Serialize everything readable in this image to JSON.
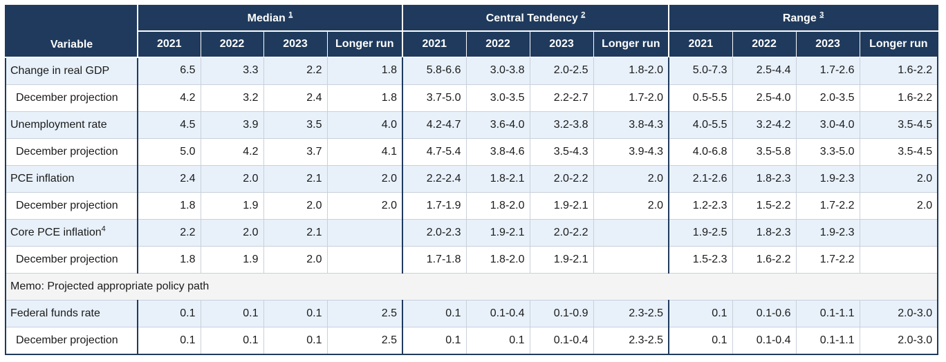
{
  "header": {
    "variable_label": "Variable",
    "groups": [
      {
        "label": "Median",
        "footnote": "1"
      },
      {
        "label": "Central Tendency",
        "footnote": "2"
      },
      {
        "label": "Range",
        "footnote": "3"
      }
    ],
    "columns": [
      "2021",
      "2022",
      "2023",
      "Longer run"
    ]
  },
  "rows": [
    {
      "label": "Change in real GDP",
      "values": [
        "6.5",
        "3.3",
        "2.2",
        "1.8",
        "5.8-6.6",
        "3.0-3.8",
        "2.0-2.5",
        "1.8-2.0",
        "5.0-7.3",
        "2.5-4.4",
        "1.7-2.6",
        "1.6-2.2"
      ]
    },
    {
      "label": "December projection",
      "values": [
        "4.2",
        "3.2",
        "2.4",
        "1.8",
        "3.7-5.0",
        "3.0-3.5",
        "2.2-2.7",
        "1.7-2.0",
        "0.5-5.5",
        "2.5-4.0",
        "2.0-3.5",
        "1.6-2.2"
      ]
    },
    {
      "label": "Unemployment rate",
      "values": [
        "4.5",
        "3.9",
        "3.5",
        "4.0",
        "4.2-4.7",
        "3.6-4.0",
        "3.2-3.8",
        "3.8-4.3",
        "4.0-5.5",
        "3.2-4.2",
        "3.0-4.0",
        "3.5-4.5"
      ]
    },
    {
      "label": "December projection",
      "values": [
        "5.0",
        "4.2",
        "3.7",
        "4.1",
        "4.7-5.4",
        "3.8-4.6",
        "3.5-4.3",
        "3.9-4.3",
        "4.0-6.8",
        "3.5-5.8",
        "3.3-5.0",
        "3.5-4.5"
      ]
    },
    {
      "label": "PCE inflation",
      "values": [
        "2.4",
        "2.0",
        "2.1",
        "2.0",
        "2.2-2.4",
        "1.8-2.1",
        "2.0-2.2",
        "2.0",
        "2.1-2.6",
        "1.8-2.3",
        "1.9-2.3",
        "2.0"
      ]
    },
    {
      "label": "December projection",
      "values": [
        "1.8",
        "1.9",
        "2.0",
        "2.0",
        "1.7-1.9",
        "1.8-2.0",
        "1.9-2.1",
        "2.0",
        "1.2-2.3",
        "1.5-2.2",
        "1.7-2.2",
        "2.0"
      ]
    },
    {
      "label": "Core PCE inflation",
      "footnote": "4",
      "values": [
        "2.2",
        "2.0",
        "2.1",
        "",
        "2.0-2.3",
        "1.9-2.1",
        "2.0-2.2",
        "",
        "1.9-2.5",
        "1.8-2.3",
        "1.9-2.3",
        ""
      ]
    },
    {
      "label": "December projection",
      "values": [
        "1.8",
        "1.9",
        "2.0",
        "",
        "1.7-1.8",
        "1.8-2.0",
        "1.9-2.1",
        "",
        "1.5-2.3",
        "1.6-2.2",
        "1.7-2.2",
        ""
      ]
    }
  ],
  "memo": "Memo: Projected appropriate policy path",
  "policy_rows": [
    {
      "label": "Federal funds rate",
      "values": [
        "0.1",
        "0.1",
        "0.1",
        "2.5",
        "0.1",
        "0.1-0.4",
        "0.1-0.9",
        "2.3-2.5",
        "0.1",
        "0.1-0.6",
        "0.1-1.1",
        "2.0-3.0"
      ]
    },
    {
      "label": "December projection",
      "values": [
        "0.1",
        "0.1",
        "0.1",
        "2.5",
        "0.1",
        "0.1",
        "0.1-0.4",
        "2.3-2.5",
        "0.1",
        "0.1-0.4",
        "0.1-1.1",
        "2.0-3.0"
      ]
    }
  ]
}
